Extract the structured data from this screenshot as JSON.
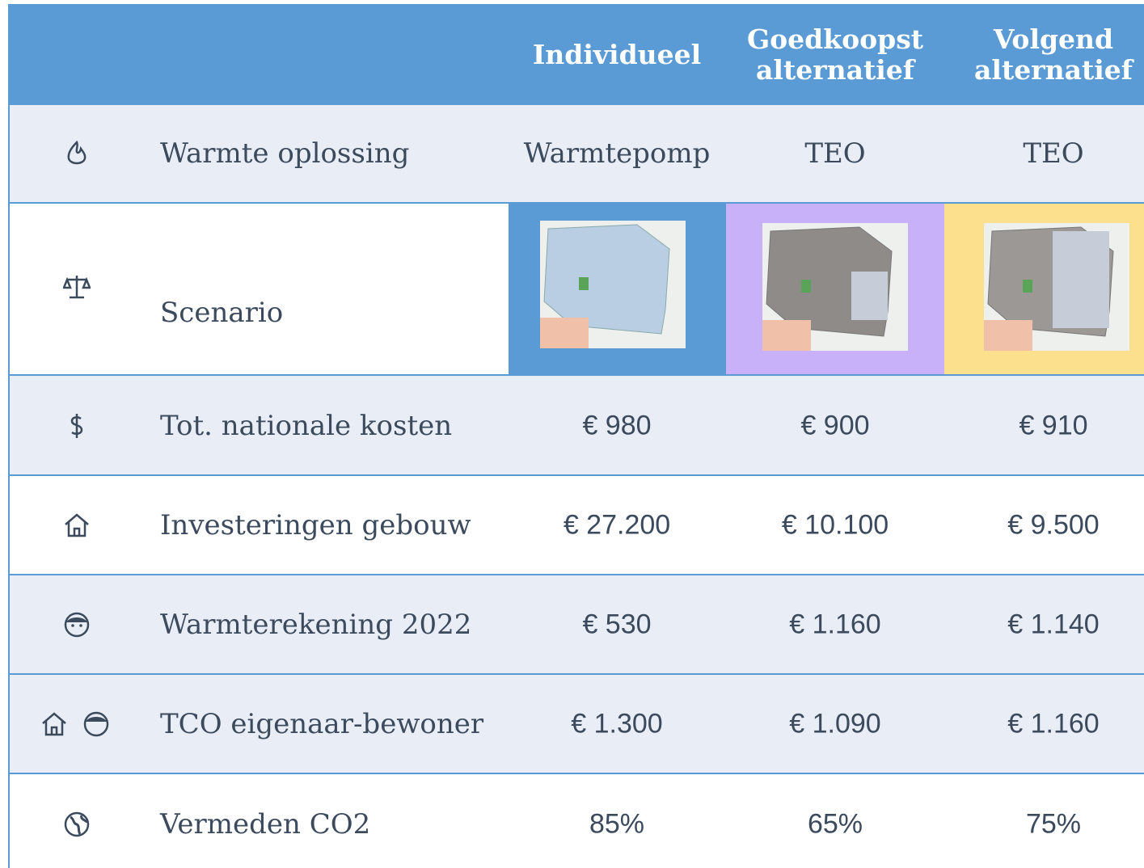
{
  "table": {
    "columns": [
      "Individueel",
      "Goedkoopst alternatief",
      "Volgend alternatief"
    ],
    "rows": [
      {
        "label": "Warmte oplossing",
        "cells": [
          "Warmtepomp",
          "TEO",
          "TEO"
        ]
      },
      {
        "label": "Scenario"
      },
      {
        "label": "Tot. nationale kosten",
        "cells": [
          "€ 980",
          "€ 900",
          "€ 910"
        ]
      },
      {
        "label": "Investeringen gebouw",
        "cells": [
          "€ 27.200",
          "€ 10.100",
          "€ 9.500"
        ]
      },
      {
        "label": "Warmterekening 2022",
        "cells": [
          "€ 530",
          "€ 1.160",
          "€ 1.140"
        ]
      },
      {
        "label": "TCO eigenaar-bewoner",
        "cells": [
          "€ 1.300",
          "€ 1.090",
          "€ 1.160"
        ]
      },
      {
        "label": "Vermeden CO2",
        "cells": [
          "85%",
          "65%",
          "75%"
        ]
      }
    ]
  }
}
